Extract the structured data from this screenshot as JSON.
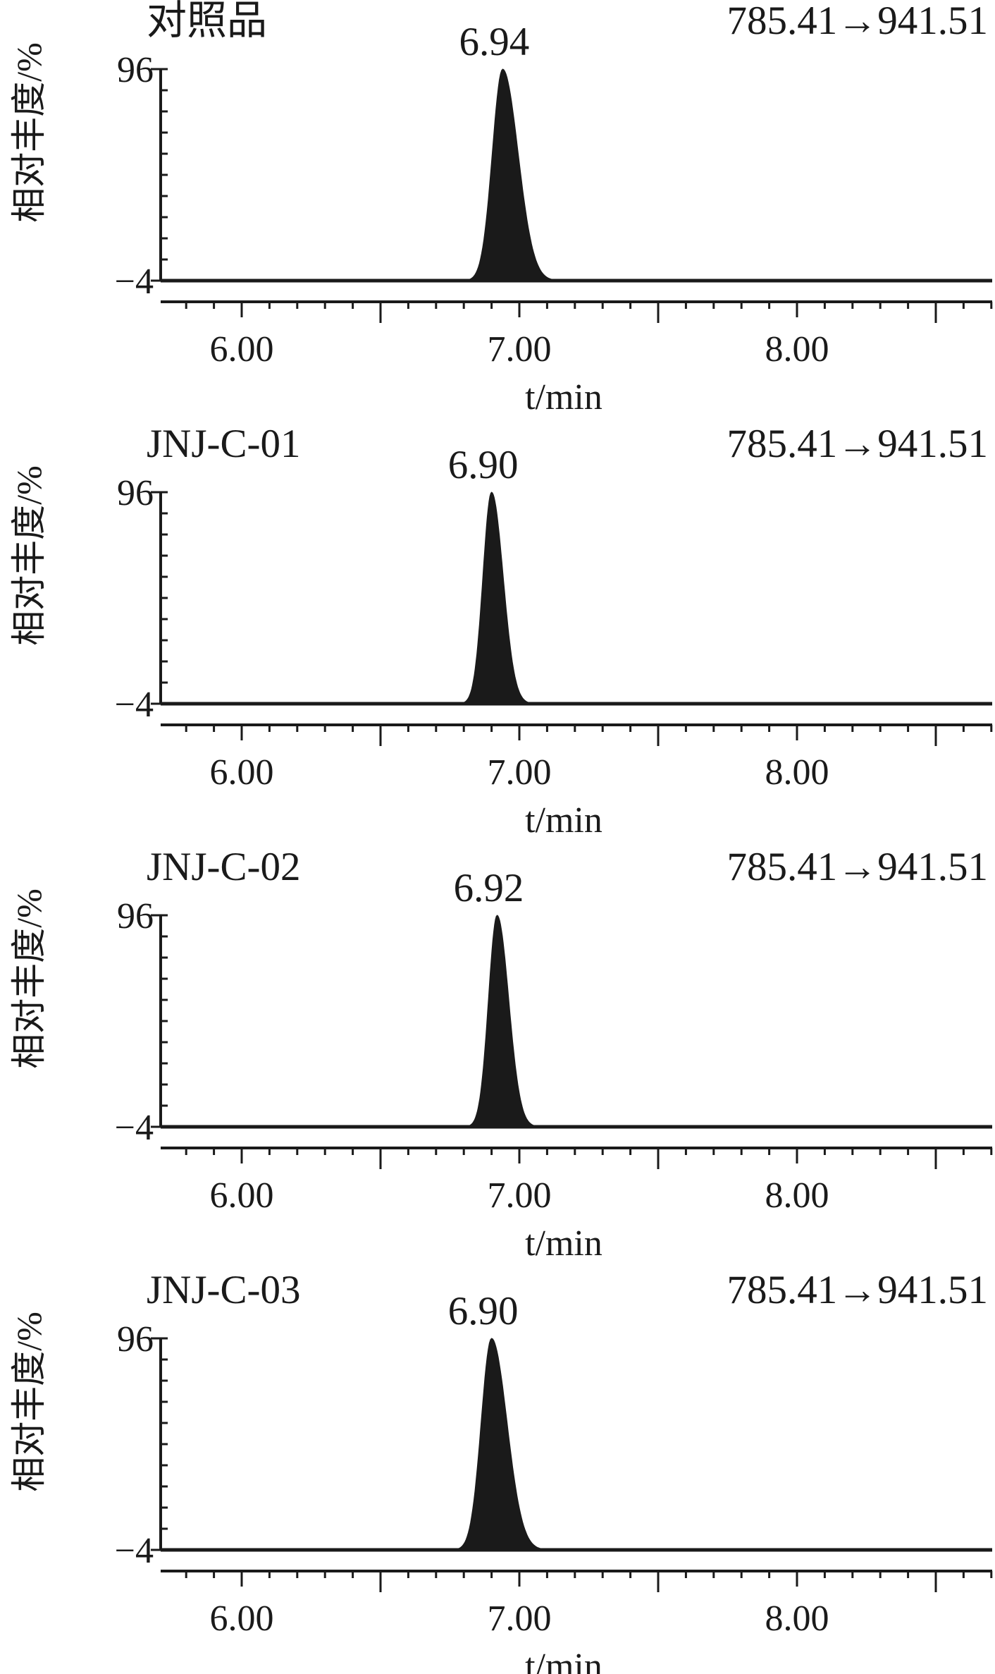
{
  "chart_data": [
    {
      "type": "area",
      "title": "对照品",
      "transition": "785.41→941.51",
      "peak_label": "6.94",
      "xlabel": "t/min",
      "ylabel": "相对丰度/%",
      "x_ticks": [
        "6.00",
        "7.00",
        "8.00"
      ],
      "y_ticks": [
        "96",
        "−4"
      ],
      "xlim": [
        5.7,
        8.7
      ],
      "ylim": [
        -4,
        96
      ],
      "peak": {
        "rt": 6.94,
        "height": 96,
        "start": 6.82,
        "end": 7.14
      },
      "color": "#1a1a1a"
    },
    {
      "type": "area",
      "title": "JNJ-C-01",
      "transition": "785.41→941.51",
      "peak_label": "6.90",
      "xlabel": "t/min",
      "ylabel": "相对丰度/%",
      "x_ticks": [
        "6.00",
        "7.00",
        "8.00"
      ],
      "y_ticks": [
        "96",
        "−4"
      ],
      "xlim": [
        5.7,
        8.7
      ],
      "ylim": [
        -4,
        96
      ],
      "peak": {
        "rt": 6.9,
        "height": 96,
        "start": 6.8,
        "end": 7.05
      },
      "color": "#1a1a1a"
    },
    {
      "type": "area",
      "title": "JNJ-C-02",
      "transition": "785.41→941.51",
      "peak_label": "6.92",
      "xlabel": "t/min",
      "ylabel": "相对丰度/%",
      "x_ticks": [
        "6.00",
        "7.00",
        "8.00"
      ],
      "y_ticks": [
        "96",
        "−4"
      ],
      "xlim": [
        5.7,
        8.7
      ],
      "ylim": [
        -4,
        96
      ],
      "peak": {
        "rt": 6.92,
        "height": 96,
        "start": 6.82,
        "end": 7.07
      },
      "color": "#1a1a1a"
    },
    {
      "type": "area",
      "title": "JNJ-C-03",
      "transition": "785.41→941.51",
      "peak_label": "6.90",
      "xlabel": "t/min",
      "ylabel": "相对丰度/%",
      "x_ticks": [
        "6.00",
        "7.00",
        "8.00"
      ],
      "y_ticks": [
        "96",
        "−4"
      ],
      "xlim": [
        5.7,
        8.7
      ],
      "ylim": [
        -4,
        96
      ],
      "peak": {
        "rt": 6.9,
        "height": 96,
        "start": 6.78,
        "end": 7.1
      },
      "color": "#1a1a1a"
    }
  ]
}
